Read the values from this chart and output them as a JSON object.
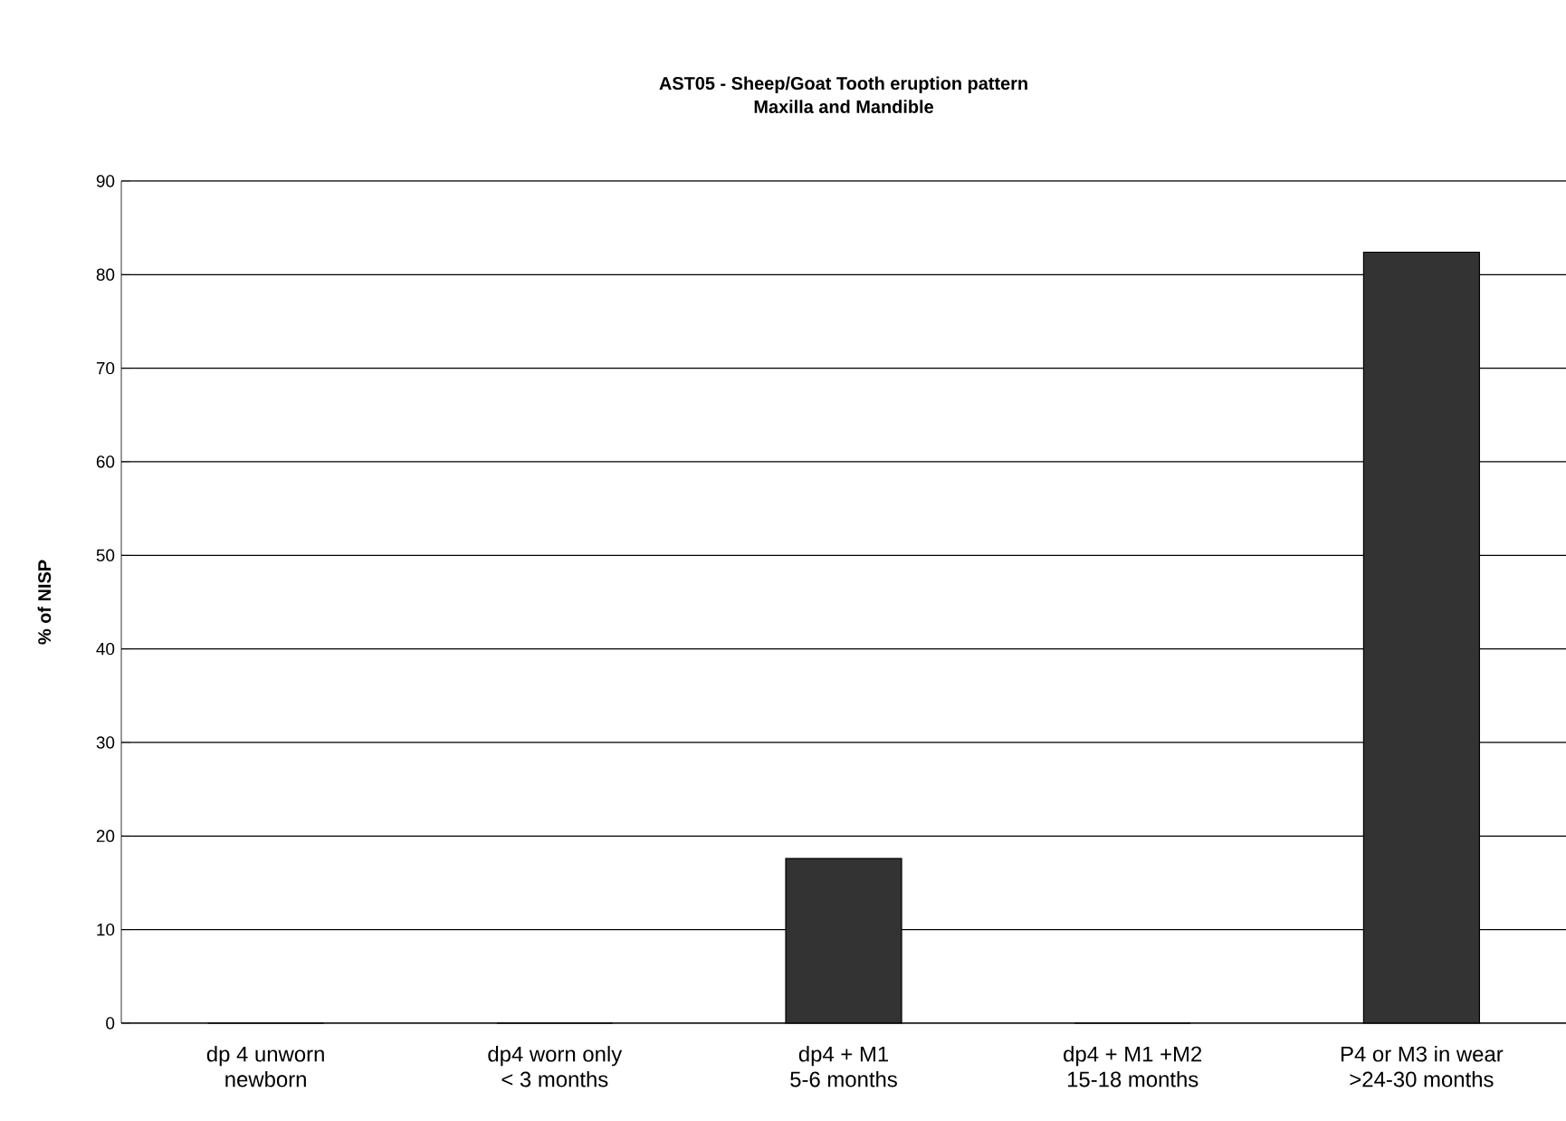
{
  "chart_data": {
    "type": "bar",
    "title": "AST05 - Sheep/Goat Tooth eruption pattern\nMaxilla and Mandible",
    "ylabel": "% of NISP",
    "categories": [
      "dp 4 unworn\nnewborn",
      "dp4 worn only\n< 3 months",
      "dp4 + M1\n5-6 months",
      "dp4 + M1 +M2\n15-18 months",
      "P4 or M3 in wear\n>24-30 months"
    ],
    "values": [
      0,
      0,
      17.6,
      0,
      82.4
    ],
    "color": "#333333",
    "ylim": [
      0,
      90
    ],
    "yticks": [
      0,
      10,
      20,
      30,
      40,
      50,
      60,
      70,
      80,
      90
    ],
    "grid": "y"
  }
}
